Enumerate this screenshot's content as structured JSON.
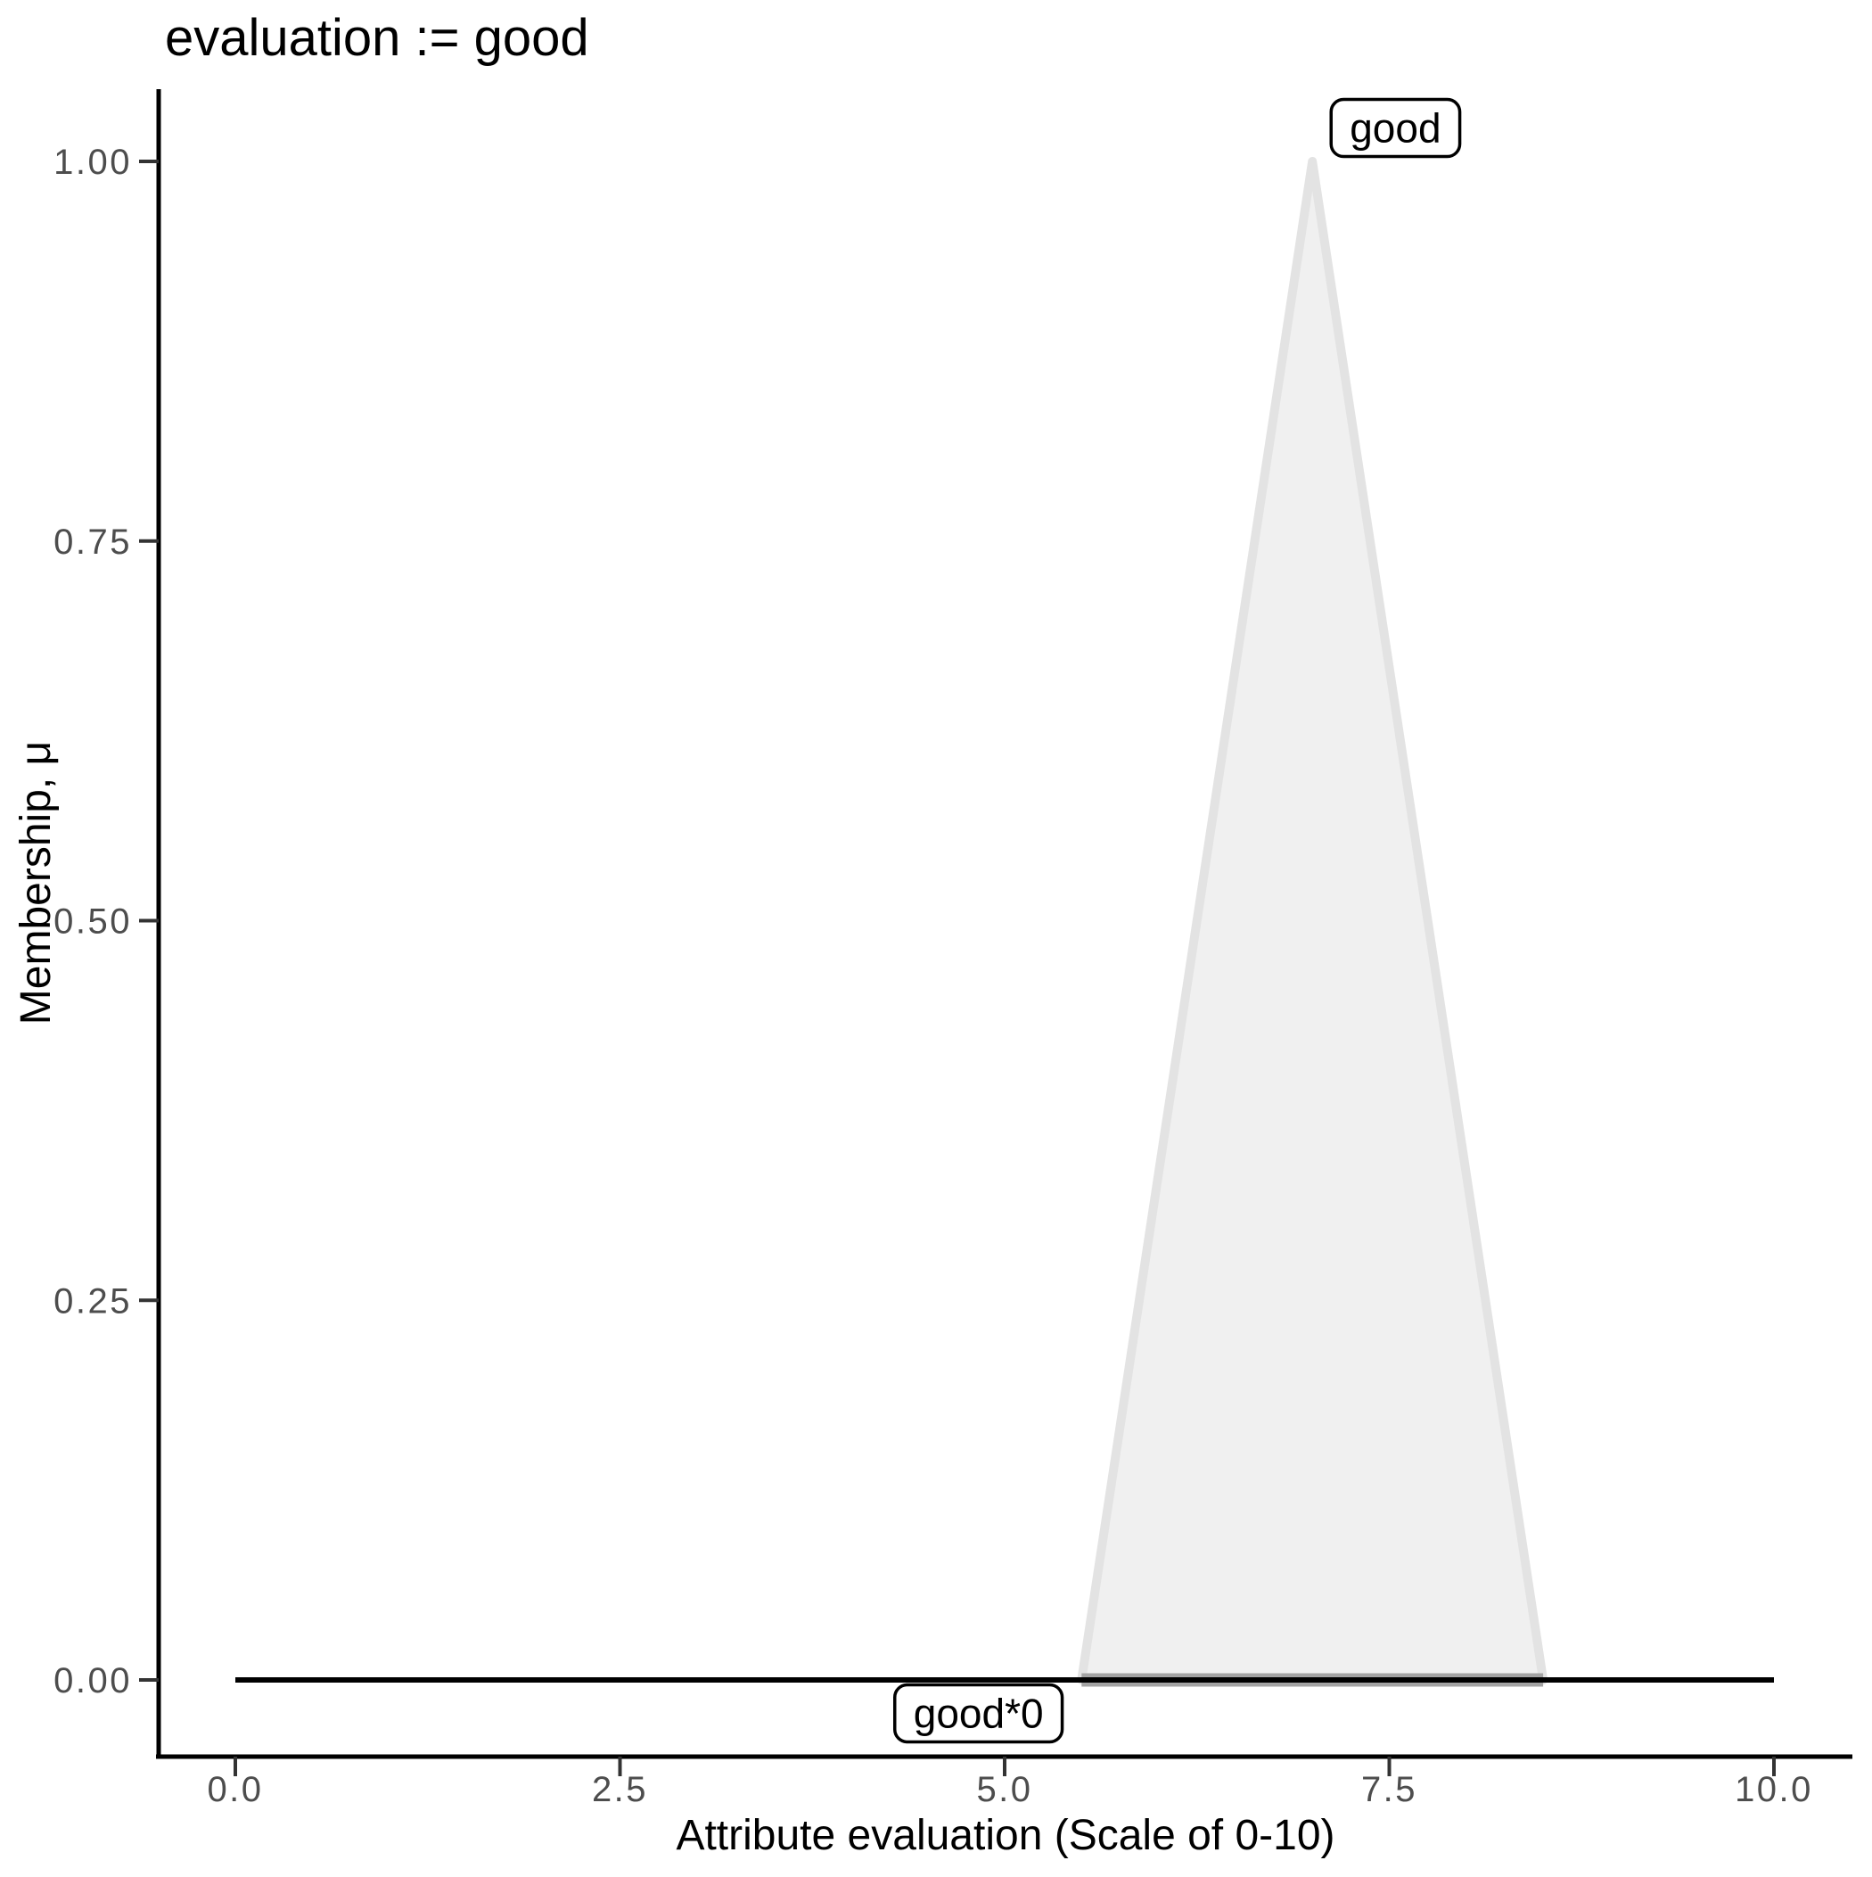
{
  "title": "evaluation := good",
  "axes": {
    "x": {
      "label": "Attribute evaluation (Scale of 0-10)",
      "ticks": [
        "0.0",
        "2.5",
        "5.0",
        "7.5",
        "10.0"
      ],
      "tick_values": [
        0,
        2.5,
        5,
        7.5,
        10
      ]
    },
    "y": {
      "label": "Membership, μ",
      "ticks": [
        "0.00",
        "0.25",
        "0.50",
        "0.75",
        "1.00"
      ],
      "tick_values": [
        0,
        0.25,
        0.5,
        0.75,
        1
      ]
    }
  },
  "chart_data": {
    "type": "area",
    "title": "evaluation := good",
    "xlabel": "Attribute evaluation (Scale of 0-10)",
    "ylabel": "Membership, μ",
    "xlim": [
      0,
      10
    ],
    "ylim": [
      0,
      1
    ],
    "grid": false,
    "legend": "none",
    "series": [
      {
        "name": "good",
        "shape": "triangle-membership",
        "x": [
          5.5,
          7,
          8.5
        ],
        "y": [
          0,
          1,
          0
        ],
        "fill": "#f0f0f0",
        "stroke": "#e3e3e3",
        "base_stroke": "#a3a3a3"
      },
      {
        "name": "good*0",
        "shape": "line",
        "x": [
          0,
          10
        ],
        "y": [
          0,
          0
        ],
        "stroke": "#000000"
      }
    ],
    "annotations": [
      {
        "text": "good",
        "x": 7.54,
        "y": 1.022
      },
      {
        "text": "good*0",
        "x": 4.83,
        "y": -0.022
      }
    ]
  },
  "colors": {
    "axis": "#000000",
    "tick_mark": "#333333",
    "tick_label": "#4d4d4d",
    "title_text": "#000000",
    "annotation_box_fill": "#ffffff",
    "annotation_box_border": "#000000"
  }
}
